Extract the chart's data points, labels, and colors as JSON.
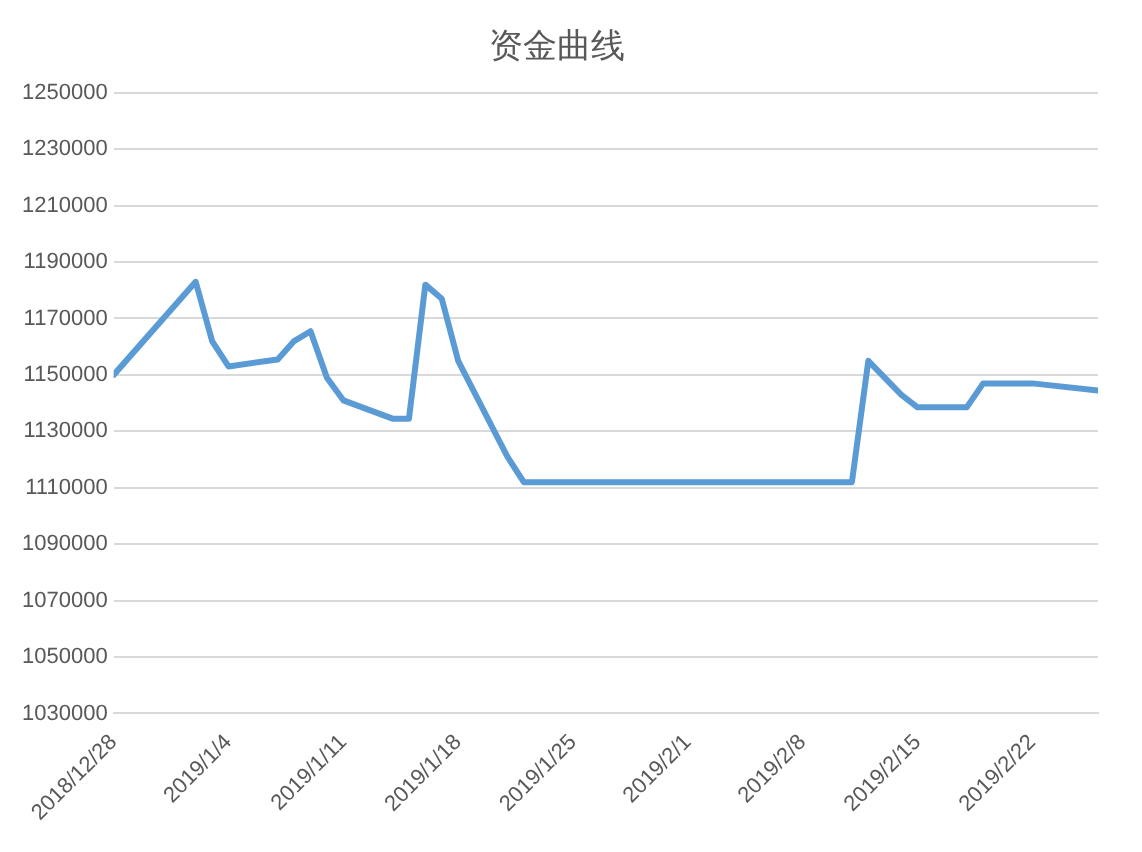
{
  "chart_data": {
    "type": "line",
    "title": "资金曲线",
    "x": [
      "2018-12-28",
      "2019-01-02",
      "2019-01-03",
      "2019-01-04",
      "2019-01-07",
      "2019-01-08",
      "2019-01-09",
      "2019-01-10",
      "2019-01-11",
      "2019-01-14",
      "2019-01-15",
      "2019-01-16",
      "2019-01-17",
      "2019-01-18",
      "2019-01-21",
      "2019-01-22",
      "2019-02-11",
      "2019-02-12",
      "2019-02-14",
      "2019-02-15",
      "2019-02-18",
      "2019-02-19",
      "2019-02-22",
      "2019-02-26"
    ],
    "series": [
      {
        "color": "#5b9bd5",
        "values": [
          1150000,
          1183000,
          1162000,
          1153000,
          1155500,
          1162000,
          1165500,
          1149000,
          1141000,
          1134500,
          1134500,
          1182000,
          1177000,
          1155000,
          1121000,
          1112000,
          1112000,
          1155000,
          1143000,
          1138500,
          1138500,
          1147000,
          1147000,
          1144500
        ]
      }
    ],
    "xlim": [
      "2018-12-28",
      "2019-02-26"
    ],
    "xticks": [
      {
        "value": "2018-12-28",
        "label": "2018/12/28"
      },
      {
        "value": "2019-01-04",
        "label": "2019/1/4"
      },
      {
        "value": "2019-01-11",
        "label": "2019/1/11"
      },
      {
        "value": "2019-01-18",
        "label": "2019/1/18"
      },
      {
        "value": "2019-01-25",
        "label": "2019/1/25"
      },
      {
        "value": "2019-02-01",
        "label": "2019/2/1"
      },
      {
        "value": "2019-02-08",
        "label": "2019/2/8"
      },
      {
        "value": "2019-02-15",
        "label": "2019/2/15"
      },
      {
        "value": "2019-02-22",
        "label": "2019/2/22"
      }
    ],
    "ylim": [
      1030000,
      1250000
    ],
    "yticks": [
      1030000,
      1050000,
      1070000,
      1090000,
      1110000,
      1130000,
      1150000,
      1170000,
      1190000,
      1210000,
      1230000,
      1250000
    ],
    "grid": "y",
    "legend": false,
    "marker": "none",
    "line_style": "solid"
  }
}
